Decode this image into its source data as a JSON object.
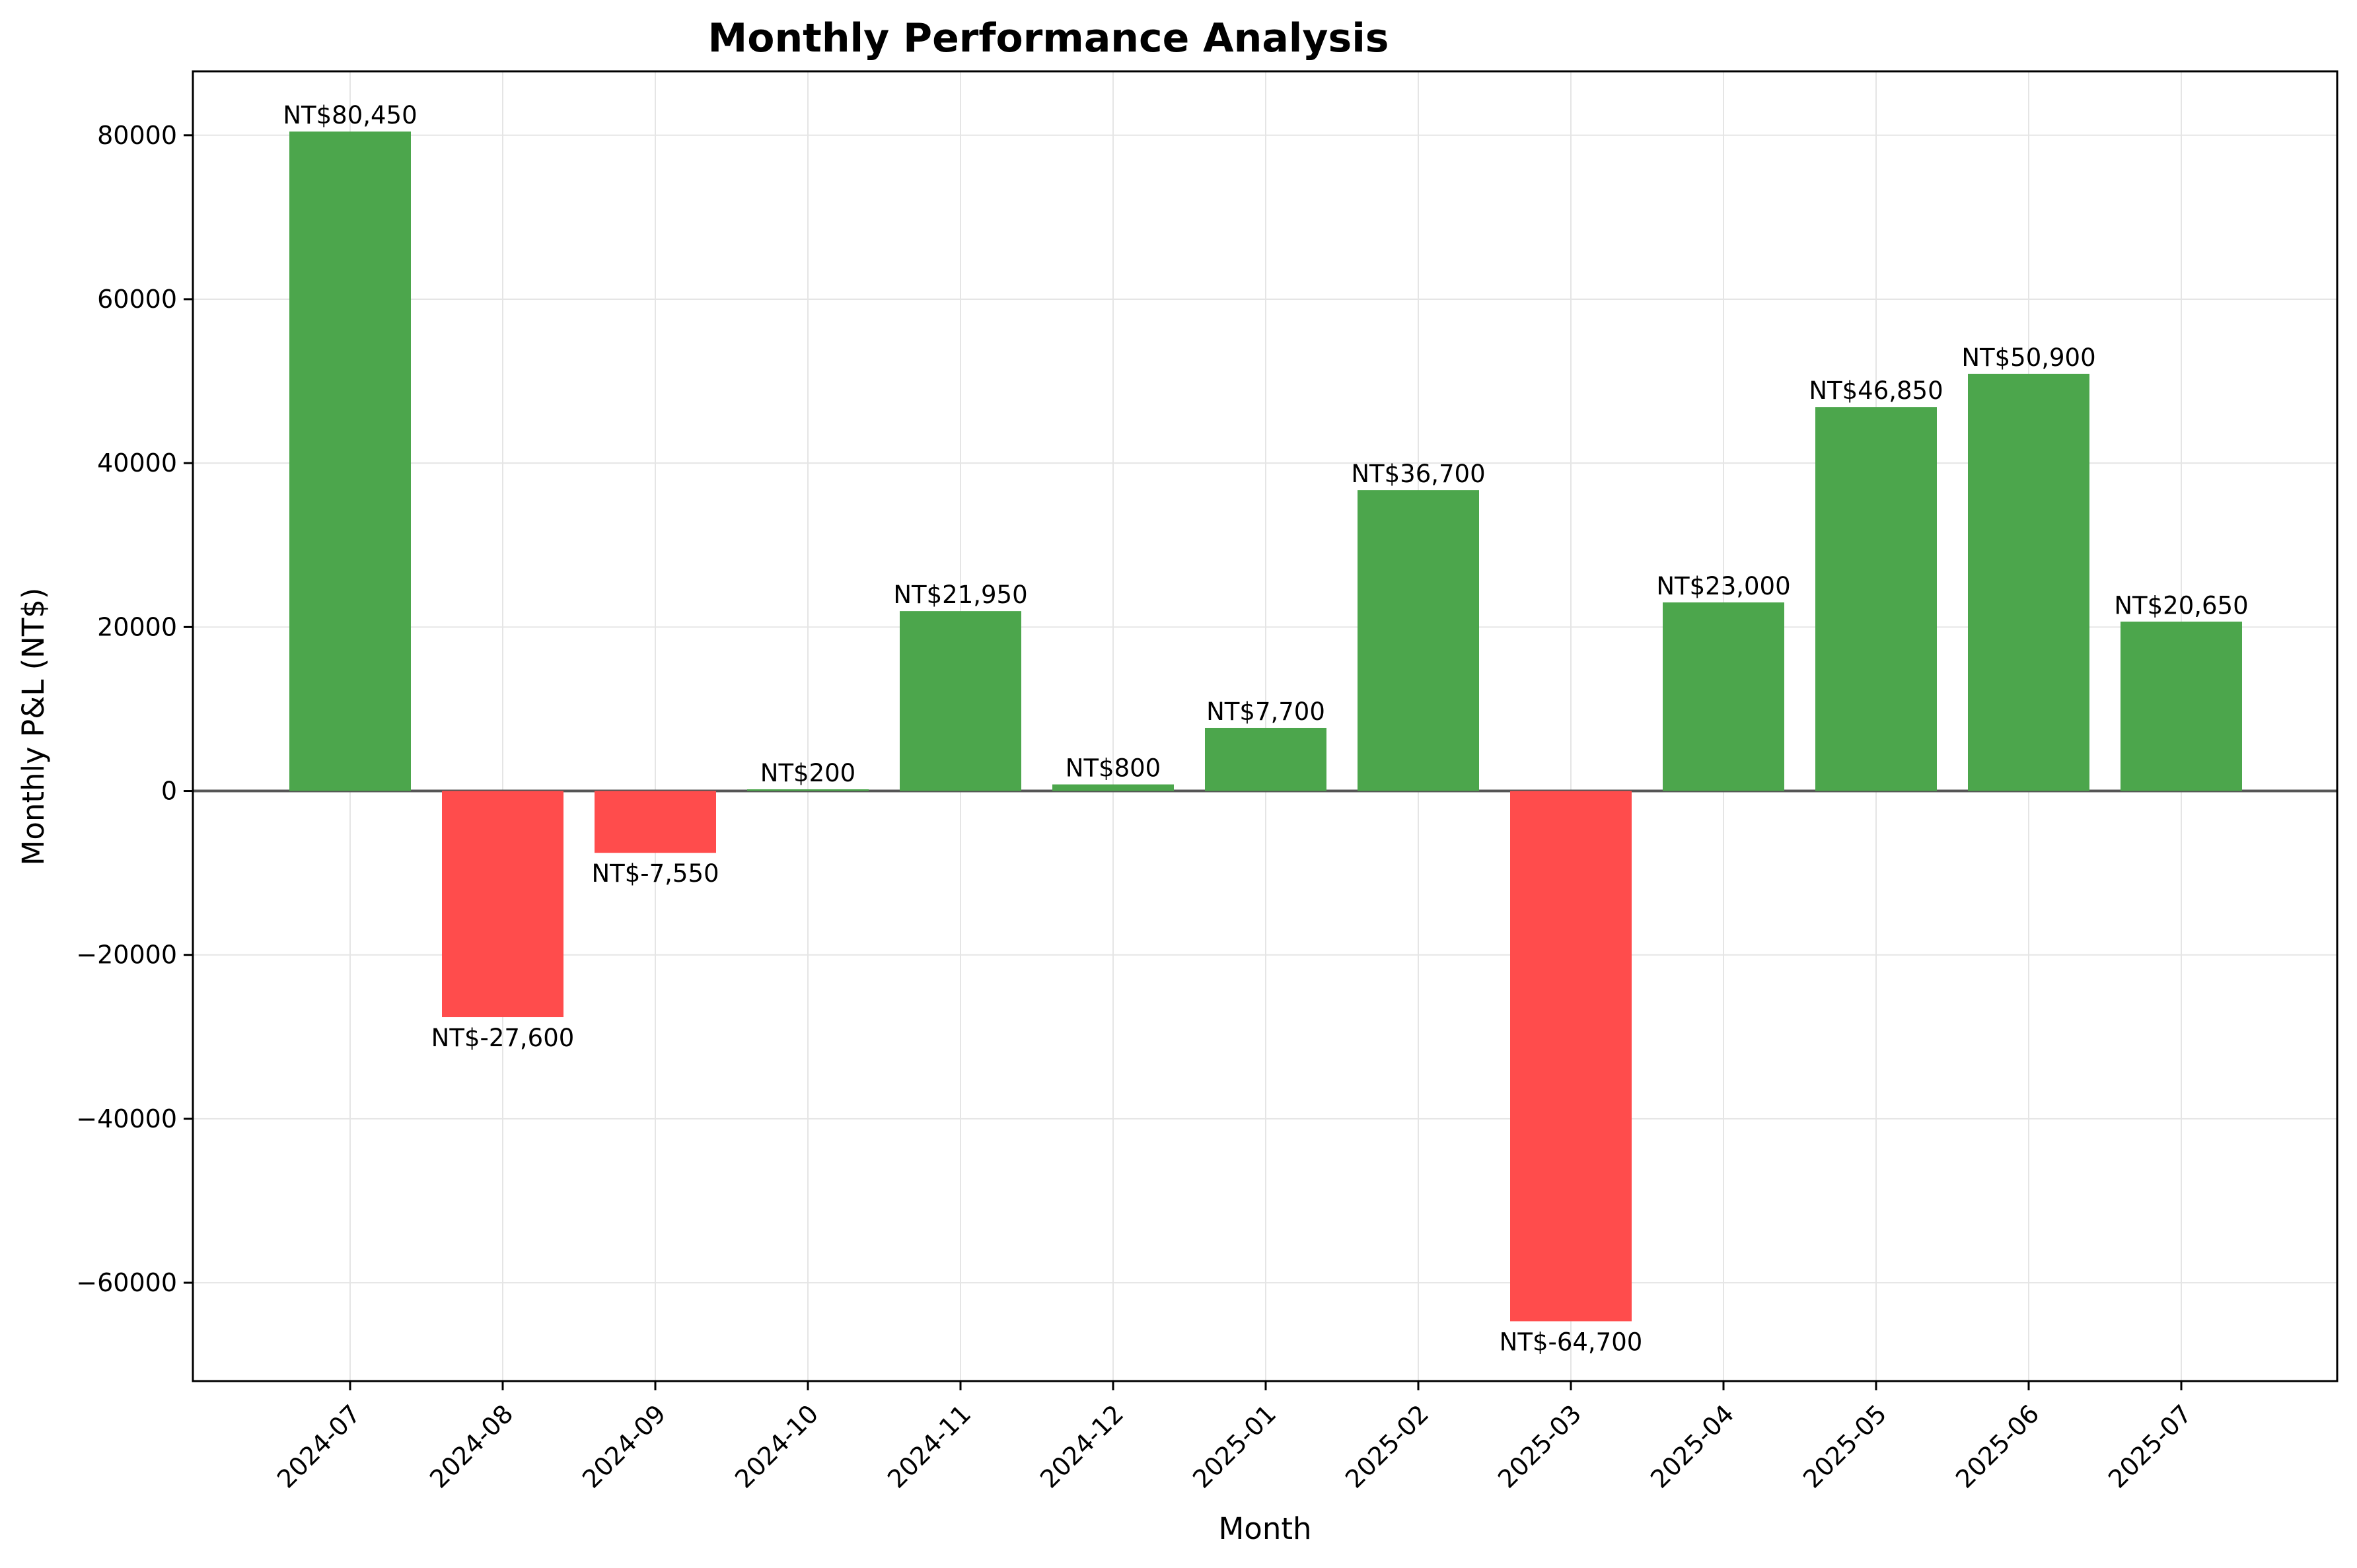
{
  "chart_data": {
    "type": "bar",
    "title": "Monthly Performance Analysis",
    "xlabel": "Month",
    "ylabel": "Monthly P&L (NT$)",
    "categories": [
      "2024-07",
      "2024-08",
      "2024-09",
      "2024-10",
      "2024-11",
      "2024-12",
      "2025-01",
      "2025-02",
      "2025-03",
      "2025-04",
      "2025-05",
      "2025-06",
      "2025-07"
    ],
    "values": [
      80450,
      -27600,
      -7550,
      200,
      21950,
      800,
      7700,
      36700,
      -64700,
      23000,
      46850,
      50900,
      20650
    ],
    "data_labels": [
      "NT$80,450",
      "NT$-27,600",
      "NT$-7,550",
      "NT$200",
      "NT$21,950",
      "NT$800",
      "NT$7,700",
      "NT$36,700",
      "NT$-64,700",
      "NT$23,000",
      "NT$46,850",
      "NT$50,900",
      "NT$20,650"
    ],
    "yticks": [
      -60000,
      -40000,
      -20000,
      0,
      20000,
      40000,
      60000,
      80000
    ],
    "ytick_labels": [
      "−60000",
      "−40000",
      "−20000",
      "0",
      "20000",
      "40000",
      "60000",
      "80000"
    ],
    "ylim": [
      -72000,
      87800
    ],
    "grid": true,
    "zero_line": true,
    "colors": {
      "positive": "#4ca64c",
      "negative": "#ff4c4c",
      "zero_line": "#555555",
      "grid": "#e5e5e5",
      "axes": "#000000"
    }
  }
}
